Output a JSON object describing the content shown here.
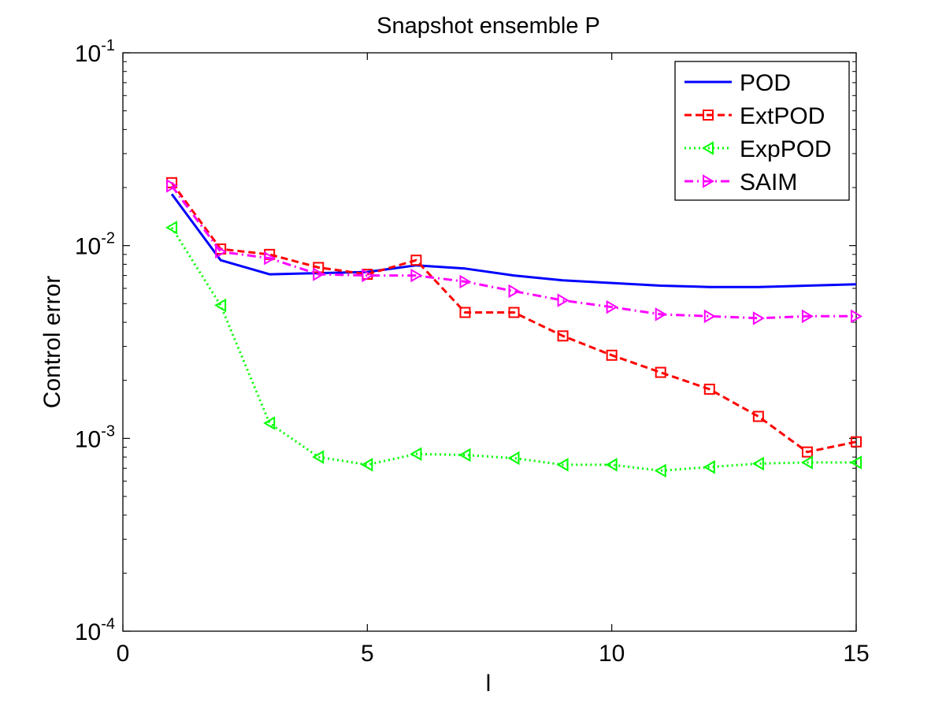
{
  "chart_data": {
    "type": "line",
    "title": "Snapshot ensemble P",
    "xlabel": "l",
    "ylabel": "Control error",
    "xlim": [
      0,
      15
    ],
    "ylim": [
      0.0001,
      0.1
    ],
    "yscale": "log",
    "xticks": [
      0,
      5,
      10,
      15
    ],
    "yticks": [
      {
        "value": 0.0001,
        "base": "10",
        "exp": "-4"
      },
      {
        "value": 0.001,
        "base": "10",
        "exp": "-3"
      },
      {
        "value": 0.01,
        "base": "10",
        "exp": "-2"
      },
      {
        "value": 0.1,
        "base": "10",
        "exp": "-1"
      }
    ],
    "grid": false,
    "legend_position": "top-right",
    "x": [
      1,
      2,
      3,
      4,
      5,
      6,
      7,
      8,
      9,
      10,
      11,
      12,
      13,
      14,
      15
    ],
    "series": [
      {
        "name": "POD",
        "color": "#0000ff",
        "style": "solid",
        "marker": "none",
        "values": [
          0.0185,
          0.0084,
          0.0071,
          0.0072,
          0.0073,
          0.0079,
          0.0076,
          0.007,
          0.0066,
          0.0064,
          0.0062,
          0.0061,
          0.0061,
          0.0062,
          0.0063
        ]
      },
      {
        "name": "ExtPOD",
        "color": "#ff0000",
        "style": "dashed",
        "marker": "square",
        "values": [
          0.0212,
          0.0096,
          0.009,
          0.0077,
          0.0071,
          0.0084,
          0.0045,
          0.0045,
          0.0034,
          0.0027,
          0.0022,
          0.0018,
          0.0013,
          0.00085,
          0.00096
        ]
      },
      {
        "name": "ExpPOD",
        "color": "#00ff00",
        "style": "dotted",
        "marker": "triangle-left",
        "values": [
          0.0124,
          0.0049,
          0.0012,
          0.0008,
          0.00073,
          0.00083,
          0.00082,
          0.00079,
          0.00073,
          0.00073,
          0.00068,
          0.00071,
          0.00074,
          0.00075,
          0.00075
        ]
      },
      {
        "name": "SAIM",
        "color": "#ff00ff",
        "style": "dashdot",
        "marker": "triangle-right",
        "values": [
          0.0204,
          0.0093,
          0.0086,
          0.0071,
          0.007,
          0.007,
          0.0065,
          0.0058,
          0.0052,
          0.0048,
          0.0044,
          0.0043,
          0.0042,
          0.0043,
          0.0043
        ]
      }
    ]
  }
}
